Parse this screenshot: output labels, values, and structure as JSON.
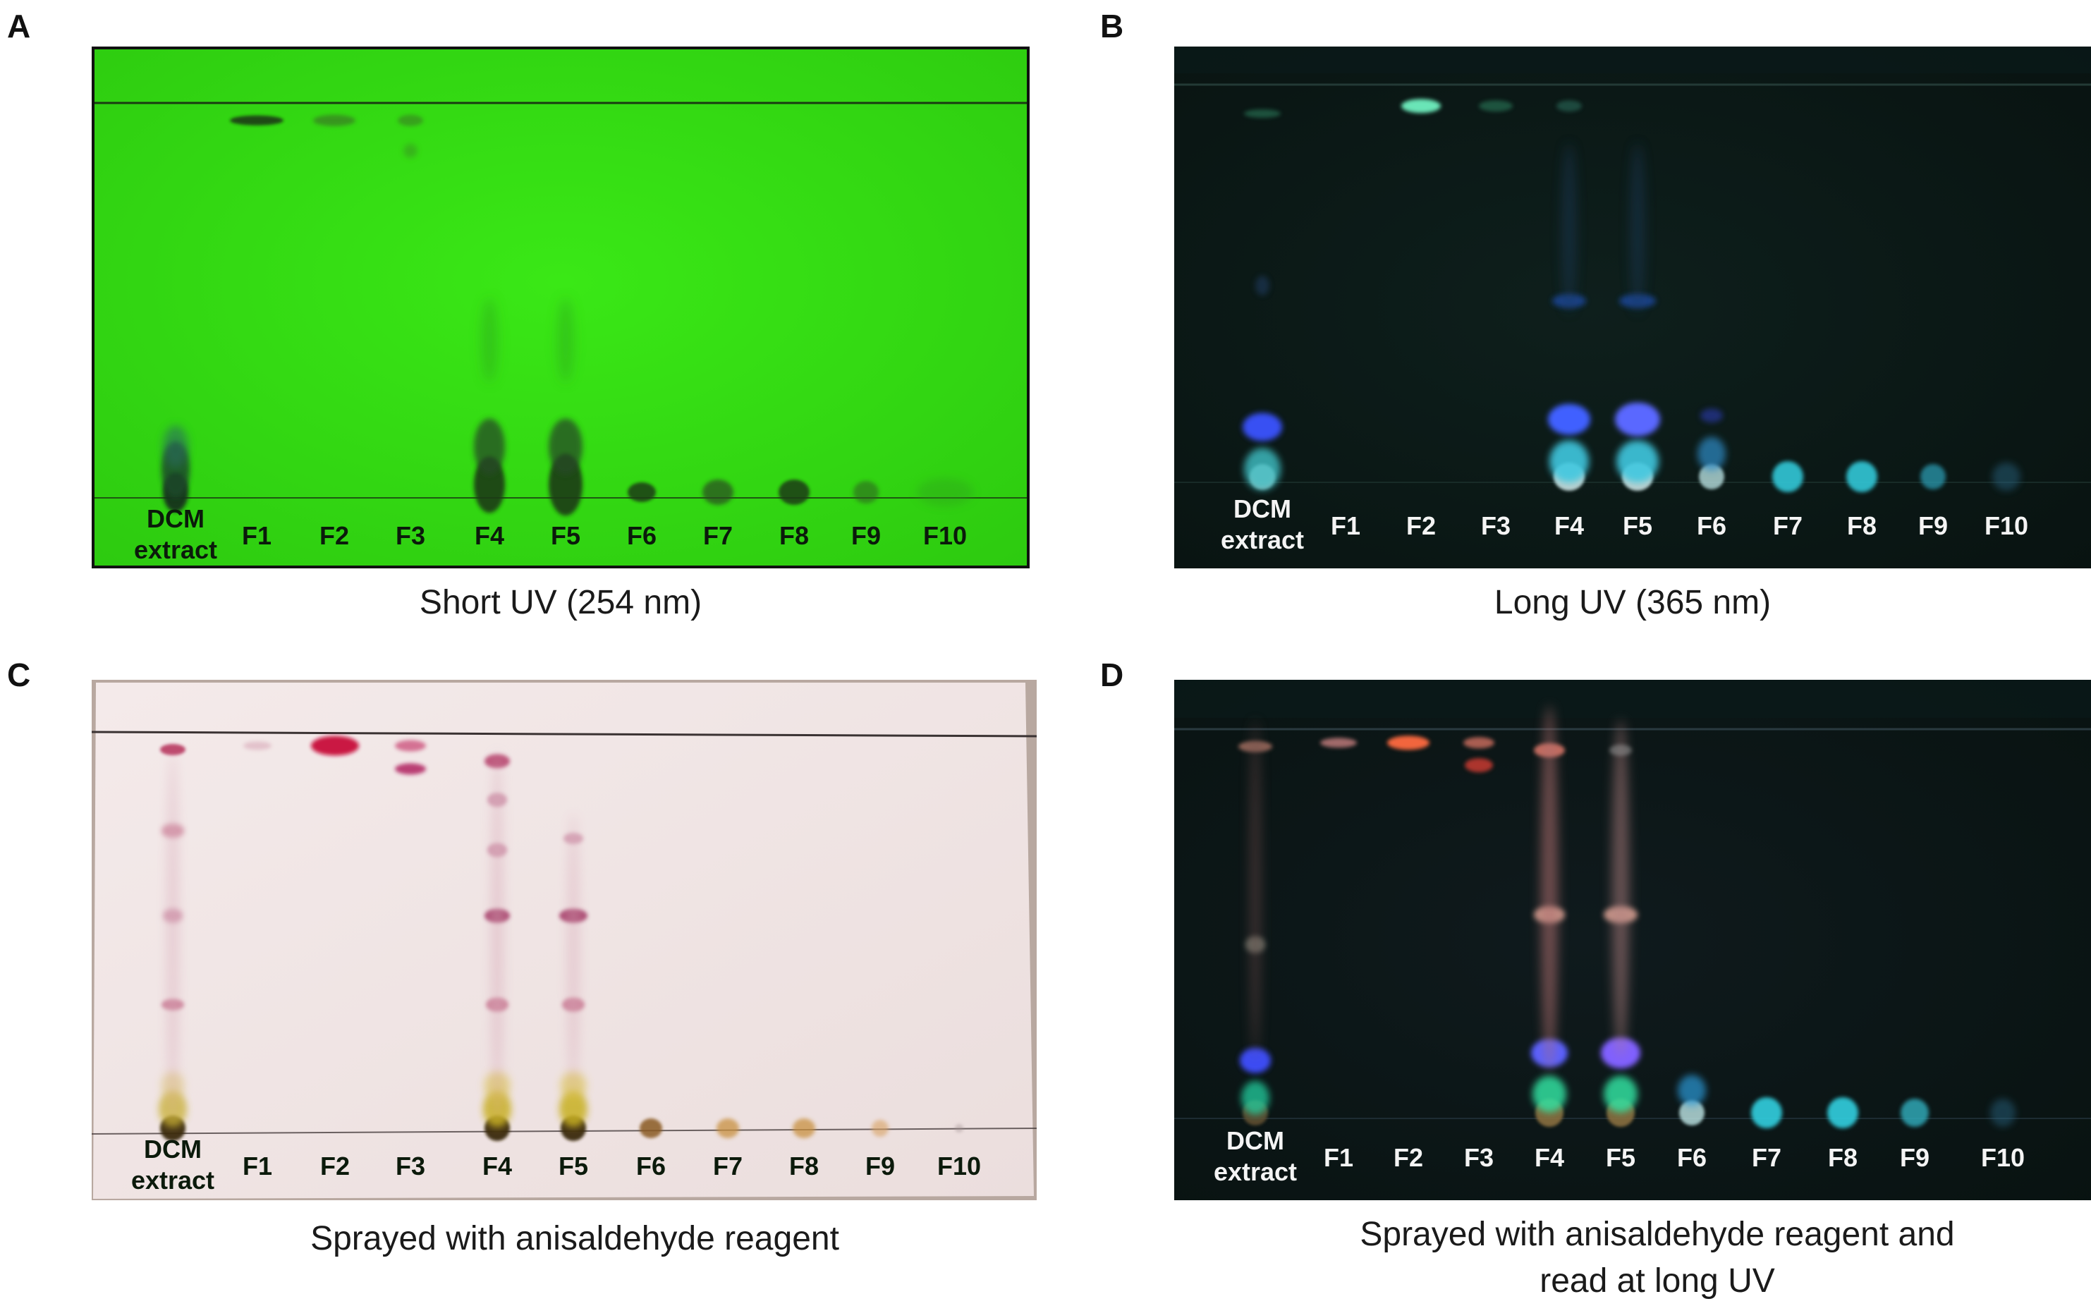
{
  "panels": [
    {
      "letter": "A",
      "caption_lines": [
        "Short UV (254 nm)"
      ]
    },
    {
      "letter": "B",
      "caption_lines": [
        "Long UV (365 nm)"
      ]
    },
    {
      "letter": "C",
      "caption_lines": [
        "Sprayed with anisaldehyde reagent"
      ]
    },
    {
      "letter": "D",
      "caption_lines": [
        "Sprayed with anisaldehyde reagent and",
        "read at long UV"
      ]
    }
  ],
  "lanes": [
    {
      "lines": [
        "DCM",
        "extract"
      ]
    },
    {
      "lines": [
        "F1"
      ]
    },
    {
      "lines": [
        "F2"
      ]
    },
    {
      "lines": [
        "F3"
      ]
    },
    {
      "lines": [
        "F4"
      ]
    },
    {
      "lines": [
        "F5"
      ]
    },
    {
      "lines": [
        "F6"
      ]
    },
    {
      "lines": [
        "F7"
      ]
    },
    {
      "lines": [
        "F8"
      ]
    },
    {
      "lines": [
        "F9"
      ]
    },
    {
      "lines": [
        "F10"
      ]
    }
  ],
  "colors": {
    "plate_a_bg": "#33d612",
    "plate_b_bg": "#0e1f1c",
    "plate_c_bg": "#efe4e3",
    "plate_d_bg": "#0f1a1d",
    "label_dark": "#0b1a0b",
    "label_light": "#f4f4f4"
  }
}
